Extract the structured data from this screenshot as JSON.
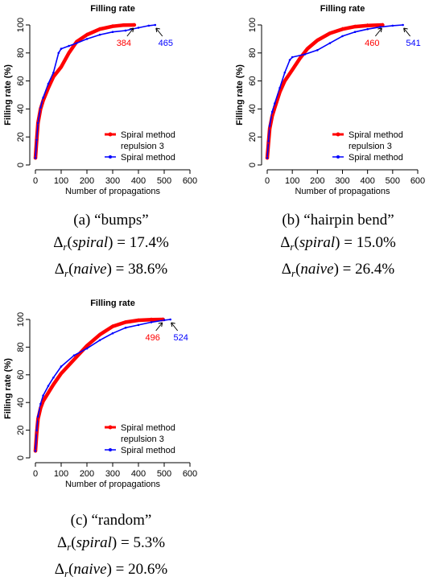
{
  "chart_data": [
    {
      "id": "a",
      "type": "line",
      "title": "Filling rate",
      "xlabel": "Number of propagations",
      "ylabel": "Filling rate (%)",
      "xlim": [
        0,
        600
      ],
      "ylim": [
        0,
        100
      ],
      "xticks": [
        0,
        100,
        200,
        300,
        400,
        500,
        600
      ],
      "yticks": [
        0,
        20,
        40,
        60,
        80,
        100
      ],
      "legend_position": "bottom-right",
      "series": [
        {
          "name": "Spiral method repulsion 3",
          "legend_lines": [
            "Spiral method",
            "repulsion 3"
          ],
          "color": "#ff0000",
          "x": [
            0,
            5,
            10,
            20,
            30,
            50,
            70,
            100,
            130,
            160,
            200,
            250,
            300,
            340,
            384
          ],
          "y": [
            5,
            18,
            30,
            40,
            46,
            55,
            63,
            70,
            80,
            88,
            93,
            97,
            99,
            99.8,
            100
          ]
        },
        {
          "name": "Spiral method",
          "legend_lines": [
            "Spiral method"
          ],
          "color": "#0000ff",
          "x": [
            0,
            5,
            10,
            20,
            30,
            50,
            70,
            90,
            100,
            130,
            160,
            200,
            250,
            300,
            350,
            400,
            440,
            465
          ],
          "y": [
            5,
            18,
            30,
            41,
            48,
            58,
            66,
            80,
            83,
            85,
            87,
            90,
            93,
            95,
            96,
            98,
            99.5,
            100
          ]
        }
      ],
      "annotations": [
        {
          "text": "384",
          "color": "#ff0000",
          "x": 384
        },
        {
          "text": "465",
          "color": "#0000ff",
          "x": 465
        }
      ]
    },
    {
      "id": "b",
      "type": "line",
      "title": "Filling rate",
      "xlabel": "Number of propagations",
      "ylabel": "Filling rate (%)",
      "xlim": [
        0,
        600
      ],
      "ylim": [
        0,
        100
      ],
      "xticks": [
        0,
        100,
        200,
        300,
        400,
        500,
        600
      ],
      "yticks": [
        0,
        20,
        40,
        60,
        80,
        100
      ],
      "legend_position": "bottom-right",
      "series": [
        {
          "name": "Spiral method repulsion 3",
          "legend_lines": [
            "Spiral method",
            "repulsion 3"
          ],
          "color": "#ff0000",
          "x": [
            0,
            5,
            10,
            20,
            30,
            50,
            70,
            100,
            130,
            160,
            200,
            250,
            300,
            350,
            400,
            460
          ],
          "y": [
            5,
            16,
            26,
            35,
            41,
            52,
            60,
            68,
            76,
            83,
            89,
            94,
            97,
            98.8,
            99.6,
            100
          ]
        },
        {
          "name": "Spiral method",
          "legend_lines": [
            "Spiral method"
          ],
          "color": "#0000ff",
          "x": [
            0,
            5,
            10,
            20,
            30,
            50,
            70,
            90,
            100,
            150,
            200,
            250,
            300,
            350,
            400,
            450,
            500,
            541
          ],
          "y": [
            5,
            17,
            28,
            38,
            44,
            55,
            66,
            75,
            77,
            79,
            82,
            87,
            92,
            95,
            97,
            98.5,
            99.5,
            100
          ]
        }
      ],
      "annotations": [
        {
          "text": "460",
          "color": "#ff0000",
          "x": 460
        },
        {
          "text": "541",
          "color": "#0000ff",
          "x": 541
        }
      ]
    },
    {
      "id": "c",
      "type": "line",
      "title": "Filling rate",
      "xlabel": "Number of propagations",
      "ylabel": "Filling rate (%)",
      "xlim": [
        0,
        600
      ],
      "ylim": [
        0,
        100
      ],
      "xticks": [
        0,
        100,
        200,
        300,
        400,
        500,
        600
      ],
      "yticks": [
        0,
        20,
        40,
        60,
        80,
        100
      ],
      "legend_position": "bottom-right",
      "series": [
        {
          "name": "Spiral method repulsion 3",
          "legend_lines": [
            "Spiral method",
            "repulsion 3"
          ],
          "color": "#ff0000",
          "x": [
            0,
            5,
            10,
            20,
            30,
            50,
            70,
            100,
            150,
            200,
            250,
            300,
            350,
            400,
            450,
            496
          ],
          "y": [
            5,
            18,
            28,
            36,
            41,
            47,
            53,
            61,
            71,
            81,
            89,
            95,
            98,
            99.4,
            99.9,
            100
          ]
        },
        {
          "name": "Spiral method",
          "legend_lines": [
            "Spiral method"
          ],
          "color": "#0000ff",
          "x": [
            0,
            5,
            10,
            20,
            30,
            50,
            70,
            100,
            150,
            200,
            250,
            300,
            350,
            400,
            450,
            500,
            524
          ],
          "y": [
            5,
            20,
            30,
            39,
            45,
            52,
            58,
            66,
            74,
            79,
            85,
            90,
            94,
            96,
            98,
            99.5,
            100
          ]
        }
      ],
      "annotations": [
        {
          "text": "496",
          "color": "#ff0000",
          "x": 496
        },
        {
          "text": "524",
          "color": "#0000ff",
          "x": 524
        }
      ]
    }
  ],
  "captions": [
    {
      "label": "(a) “bumps”",
      "delta_sym": "Δ",
      "sub": "r",
      "spiral_word": "spiral",
      "naive_word": "naive",
      "eq": " = ",
      "spiral_value": "17.4%",
      "naive_value": "38.6%"
    },
    {
      "label": "(b) “hairpin bend”",
      "delta_sym": "Δ",
      "sub": "r",
      "spiral_word": "spiral",
      "naive_word": "naive",
      "eq": " = ",
      "spiral_value": "15.0%",
      "naive_value": "26.4%"
    },
    {
      "label": "(c) “random”",
      "delta_sym": "Δ",
      "sub": "r",
      "spiral_word": "spiral",
      "naive_word": "naive",
      "eq": " = ",
      "spiral_value": "5.3%",
      "naive_value": "20.6%"
    }
  ]
}
